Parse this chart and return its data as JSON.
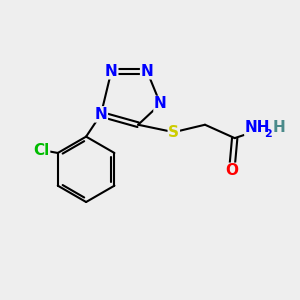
{
  "background_color": "#eeeeee",
  "atom_colors": {
    "N": "#0000ff",
    "S": "#cccc00",
    "O": "#ff0000",
    "C": "#000000",
    "Cl": "#00bb00",
    "H": "#4a8a8a"
  },
  "bond_color": "#000000",
  "bond_width": 1.5,
  "font_size_atoms": 11
}
